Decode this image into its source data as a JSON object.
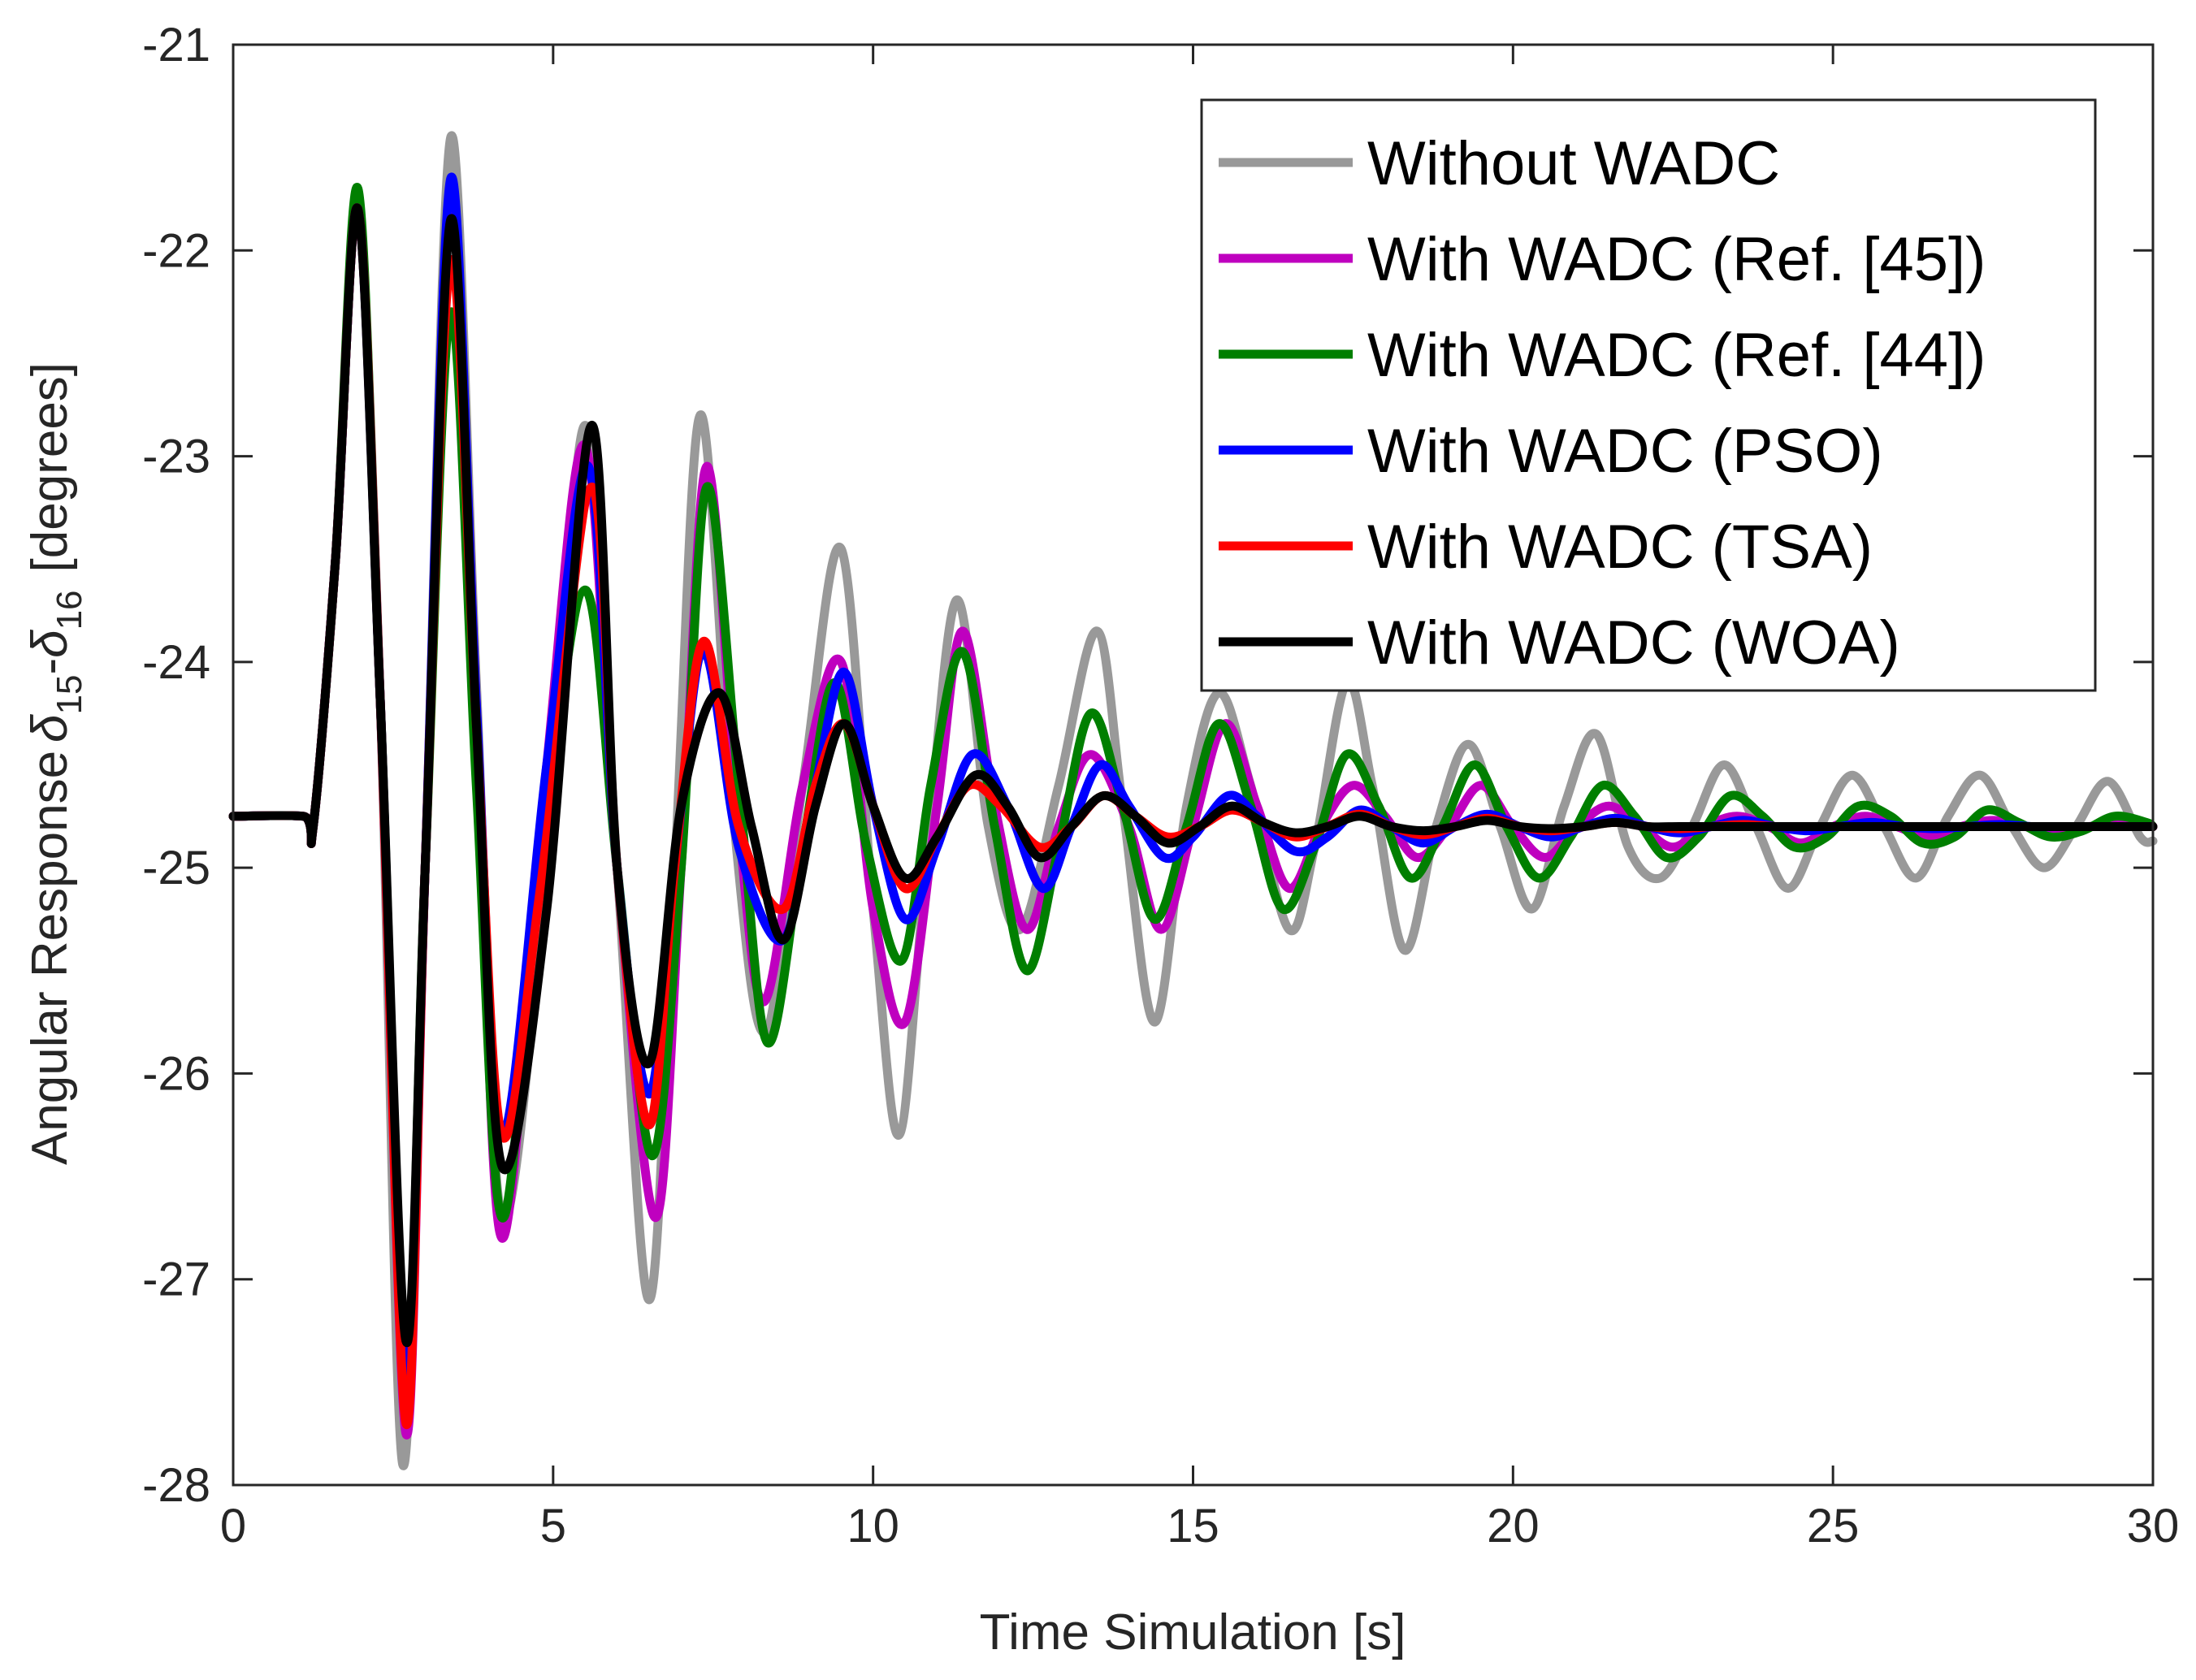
{
  "chart_data": {
    "type": "line",
    "title": "",
    "xlabel": "Time Simulation [s]",
    "ylabel": {
      "prefix": "Angular Response",
      "symbol1": "δ",
      "sub1": "15",
      "dash": "-",
      "symbol2": "δ",
      "sub2": "16",
      "unit": "[degrees]"
    },
    "xlim": [
      0,
      30
    ],
    "ylim": [
      -28,
      -21
    ],
    "xticks": [
      0,
      5,
      10,
      15,
      20,
      25,
      30
    ],
    "yticks": [
      -28,
      -27,
      -26,
      -25,
      -24,
      -23,
      -22,
      -21
    ],
    "grid": false,
    "legend_position": "top-right",
    "series": [
      {
        "name": "Without WADC",
        "color": "#999999",
        "x": [
          0,
          1.1,
          1.25,
          1.6,
          1.95,
          2.3,
          2.65,
          3.0,
          3.4,
          3.8,
          4.2,
          4.9,
          5.5,
          6.0,
          6.5,
          6.9,
          7.3,
          7.8,
          8.3,
          8.9,
          9.5,
          10.0,
          10.4,
          10.8,
          11.3,
          11.8,
          12.3,
          12.9,
          13.5,
          13.9,
          14.4,
          14.9,
          15.4,
          15.9,
          16.5,
          16.9,
          17.4,
          17.8,
          18.3,
          18.8,
          19.3,
          19.8,
          20.3,
          20.8,
          21.3,
          21.8,
          22.3,
          22.8,
          23.3,
          23.8,
          24.3,
          24.8,
          25.3,
          25.8,
          26.3,
          26.8,
          27.3,
          27.8,
          28.3,
          28.8,
          29.3,
          29.8,
          30.0
        ],
        "y": [
          -24.75,
          -24.75,
          -24.8,
          -23.5,
          -21.8,
          -24.2,
          -27.9,
          -25.0,
          -21.45,
          -24.1,
          -26.7,
          -25.0,
          -22.85,
          -25.0,
          -27.1,
          -25.0,
          -22.8,
          -24.7,
          -25.8,
          -24.6,
          -23.45,
          -25.2,
          -26.3,
          -25.1,
          -23.7,
          -24.8,
          -25.3,
          -24.6,
          -23.85,
          -24.7,
          -25.75,
          -24.7,
          -24.15,
          -24.6,
          -25.3,
          -24.9,
          -24.1,
          -24.6,
          -25.4,
          -24.8,
          -24.4,
          -24.8,
          -25.2,
          -24.7,
          -24.35,
          -24.9,
          -25.05,
          -24.8,
          -24.5,
          -24.8,
          -25.1,
          -24.8,
          -24.55,
          -24.8,
          -25.05,
          -24.75,
          -24.55,
          -24.8,
          -25.0,
          -24.8,
          -24.58,
          -24.85,
          -24.87
        ]
      },
      {
        "name": "With WADC (Ref. [45])",
        "color": "#bf00bf",
        "x": [
          0,
          1.1,
          1.25,
          1.6,
          1.95,
          2.3,
          2.7,
          3.0,
          3.4,
          3.8,
          4.2,
          4.9,
          5.5,
          6.0,
          6.6,
          7.0,
          7.4,
          7.9,
          8.3,
          8.9,
          9.5,
          10.0,
          10.5,
          11.0,
          11.4,
          11.9,
          12.4,
          12.9,
          13.4,
          14.0,
          14.5,
          15.0,
          15.5,
          16.0,
          16.5,
          17.0,
          17.5,
          18.0,
          18.5,
          19.0,
          19.5,
          20.0,
          20.5,
          21.0,
          21.5,
          22.0,
          22.5,
          23.0,
          23.5,
          24.0,
          24.5,
          25.0,
          25.5,
          26.0,
          26.5,
          27.0,
          27.5,
          28.0,
          28.5,
          29.0,
          29.5,
          30.0
        ],
        "y": [
          -24.75,
          -24.75,
          -24.8,
          -23.5,
          -21.8,
          -24.2,
          -27.75,
          -25.0,
          -21.75,
          -24.2,
          -26.8,
          -24.5,
          -22.95,
          -25.0,
          -26.7,
          -25.0,
          -23.05,
          -24.8,
          -25.65,
          -24.6,
          -24.0,
          -25.2,
          -25.75,
          -24.7,
          -23.85,
          -24.7,
          -25.3,
          -24.8,
          -24.45,
          -24.8,
          -25.3,
          -24.8,
          -24.3,
          -24.7,
          -25.1,
          -24.8,
          -24.6,
          -24.75,
          -24.95,
          -24.8,
          -24.6,
          -24.8,
          -24.95,
          -24.8,
          -24.7,
          -24.8,
          -24.9,
          -24.8,
          -24.75,
          -24.8,
          -24.88,
          -24.8,
          -24.75,
          -24.8,
          -24.85,
          -24.8,
          -24.77,
          -24.8,
          -24.82,
          -24.8,
          -24.79,
          -24.8
        ]
      },
      {
        "name": "With WADC (Ref. [44])",
        "color": "#007f00",
        "x": [
          0,
          1.1,
          1.25,
          1.6,
          1.95,
          2.3,
          2.7,
          3.0,
          3.4,
          3.8,
          4.2,
          4.8,
          5.5,
          6.0,
          6.55,
          7.0,
          7.4,
          7.9,
          8.35,
          8.9,
          9.4,
          9.9,
          10.45,
          10.9,
          11.4,
          11.9,
          12.4,
          12.9,
          13.4,
          13.9,
          14.4,
          14.9,
          15.4,
          15.9,
          16.4,
          16.9,
          17.4,
          17.9,
          18.4,
          18.9,
          19.4,
          19.9,
          20.4,
          20.9,
          21.4,
          21.9,
          22.4,
          22.9,
          23.4,
          23.9,
          24.4,
          24.9,
          25.4,
          25.9,
          26.4,
          26.9,
          27.4,
          27.9,
          28.4,
          28.9,
          29.4,
          29.9,
          30.0
        ],
        "y": [
          -24.75,
          -24.75,
          -24.8,
          -23.5,
          -21.7,
          -24.2,
          -27.4,
          -25.0,
          -22.3,
          -24.6,
          -26.7,
          -25.0,
          -23.65,
          -25.0,
          -26.4,
          -25.0,
          -23.15,
          -24.6,
          -25.85,
          -24.9,
          -24.1,
          -24.9,
          -25.45,
          -24.6,
          -23.95,
          -24.8,
          -25.5,
          -24.9,
          -24.25,
          -24.7,
          -25.25,
          -24.8,
          -24.3,
          -24.7,
          -25.2,
          -24.9,
          -24.45,
          -24.7,
          -25.05,
          -24.8,
          -24.5,
          -24.8,
          -25.05,
          -24.85,
          -24.6,
          -24.75,
          -24.95,
          -24.85,
          -24.65,
          -24.75,
          -24.9,
          -24.85,
          -24.7,
          -24.75,
          -24.88,
          -24.85,
          -24.72,
          -24.78,
          -24.85,
          -24.82,
          -24.75,
          -24.78,
          -24.8
        ]
      },
      {
        "name": "With WADC (PSO)",
        "color": "#0000ff",
        "x": [
          0,
          1.1,
          1.25,
          1.6,
          1.95,
          2.3,
          2.7,
          3.0,
          3.4,
          3.8,
          4.2,
          4.9,
          5.55,
          6.0,
          6.5,
          6.9,
          7.35,
          7.9,
          8.6,
          9.1,
          9.55,
          10.0,
          10.5,
          11.0,
          11.55,
          12.1,
          12.65,
          13.1,
          13.55,
          14.0,
          14.55,
          15.0,
          15.55,
          16.0,
          16.6,
          17.1,
          17.6,
          18.1,
          18.6,
          19.1,
          19.6,
          20.1,
          20.6,
          21.1,
          21.6,
          22.1,
          22.6,
          23.1,
          23.6,
          24.1,
          24.6,
          25.1,
          25.6,
          26.1,
          26.6,
          27.1,
          27.6,
          28.1,
          28.6,
          29.1,
          29.6,
          30.0
        ],
        "y": [
          -24.75,
          -24.75,
          -24.8,
          -23.5,
          -21.8,
          -24.2,
          -27.5,
          -25.0,
          -21.65,
          -24.2,
          -26.3,
          -24.5,
          -23.05,
          -25.0,
          -26.1,
          -25.0,
          -23.95,
          -24.9,
          -25.35,
          -24.6,
          -24.05,
          -24.7,
          -25.25,
          -24.9,
          -24.45,
          -24.7,
          -25.1,
          -24.8,
          -24.5,
          -24.7,
          -24.95,
          -24.85,
          -24.65,
          -24.75,
          -24.92,
          -24.85,
          -24.72,
          -24.8,
          -24.88,
          -24.8,
          -24.74,
          -24.8,
          -24.85,
          -24.8,
          -24.76,
          -24.8,
          -24.83,
          -24.8,
          -24.77,
          -24.8,
          -24.82,
          -24.8,
          -24.78,
          -24.8,
          -24.81,
          -24.8,
          -24.79,
          -24.8,
          -24.8,
          -24.8,
          -24.8,
          -24.8
        ]
      },
      {
        "name": "With WADC (TSA)",
        "color": "#ff0000",
        "x": [
          0,
          1.1,
          1.25,
          1.6,
          1.95,
          2.3,
          2.7,
          3.0,
          3.4,
          3.8,
          4.2,
          4.8,
          5.6,
          6.0,
          6.5,
          6.9,
          7.35,
          7.9,
          8.6,
          9.1,
          9.55,
          10.0,
          10.5,
          11.0,
          11.5,
          12.0,
          12.6,
          13.1,
          13.6,
          14.1,
          14.6,
          15.1,
          15.6,
          16.1,
          16.6,
          17.1,
          17.6,
          18.1,
          18.6,
          19.1,
          19.6,
          20.1,
          20.6,
          21.1,
          21.6,
          22.1,
          22.6,
          23.1,
          23.6,
          24.1,
          24.6,
          25.1,
          25.6,
          26.1,
          26.6,
          27.1,
          27.6,
          28.1,
          28.6,
          29.1,
          29.6,
          30.0
        ],
        "y": [
          -24.75,
          -24.75,
          -24.8,
          -23.5,
          -21.8,
          -24.2,
          -27.7,
          -25.0,
          -22.05,
          -24.3,
          -26.3,
          -25.1,
          -23.15,
          -25.0,
          -26.25,
          -25.0,
          -23.9,
          -24.8,
          -25.2,
          -24.6,
          -24.3,
          -24.7,
          -25.1,
          -24.85,
          -24.6,
          -24.7,
          -24.9,
          -24.8,
          -24.65,
          -24.75,
          -24.85,
          -24.8,
          -24.72,
          -24.78,
          -24.85,
          -24.8,
          -24.74,
          -24.8,
          -24.84,
          -24.8,
          -24.76,
          -24.8,
          -24.82,
          -24.8,
          -24.78,
          -24.8,
          -24.81,
          -24.8,
          -24.79,
          -24.8,
          -24.8,
          -24.8,
          -24.8,
          -24.8,
          -24.8,
          -24.8,
          -24.8,
          -24.8,
          -24.8,
          -24.8,
          -24.8,
          -24.8
        ]
      },
      {
        "name": "With WADC (WOA)",
        "color": "#000000",
        "x": [
          0,
          1.1,
          1.25,
          1.6,
          1.95,
          2.3,
          2.7,
          3.0,
          3.4,
          3.8,
          4.2,
          4.9,
          5.6,
          6.0,
          6.5,
          7.0,
          7.6,
          8.1,
          8.6,
          9.1,
          9.55,
          10.0,
          10.5,
          11.0,
          11.6,
          12.1,
          12.6,
          13.1,
          13.6,
          14.1,
          14.6,
          15.1,
          15.6,
          16.1,
          16.6,
          17.1,
          17.6,
          18.1,
          18.6,
          19.1,
          19.6,
          20.1,
          20.6,
          21.1,
          21.6,
          22.1,
          22.6,
          23.1,
          23.6,
          24.1,
          24.6,
          25.1,
          25.6,
          26.1,
          26.6,
          27.1,
          27.6,
          28.1,
          28.6,
          29.1,
          29.6,
          30.0
        ],
        "y": [
          -24.75,
          -24.75,
          -24.8,
          -23.5,
          -21.8,
          -24.2,
          -27.3,
          -25.0,
          -21.85,
          -24.3,
          -26.45,
          -25.2,
          -22.85,
          -25.0,
          -25.95,
          -24.7,
          -24.15,
          -24.8,
          -25.35,
          -24.7,
          -24.3,
          -24.7,
          -25.05,
          -24.85,
          -24.55,
          -24.7,
          -24.95,
          -24.8,
          -24.65,
          -24.75,
          -24.88,
          -24.8,
          -24.7,
          -24.78,
          -24.83,
          -24.8,
          -24.75,
          -24.8,
          -24.82,
          -24.8,
          -24.77,
          -24.8,
          -24.81,
          -24.8,
          -24.78,
          -24.8,
          -24.8,
          -24.8,
          -24.8,
          -24.8,
          -24.8,
          -24.8,
          -24.8,
          -24.8,
          -24.8,
          -24.8,
          -24.8,
          -24.8,
          -24.8,
          -24.8,
          -24.8,
          -24.8
        ]
      }
    ]
  }
}
